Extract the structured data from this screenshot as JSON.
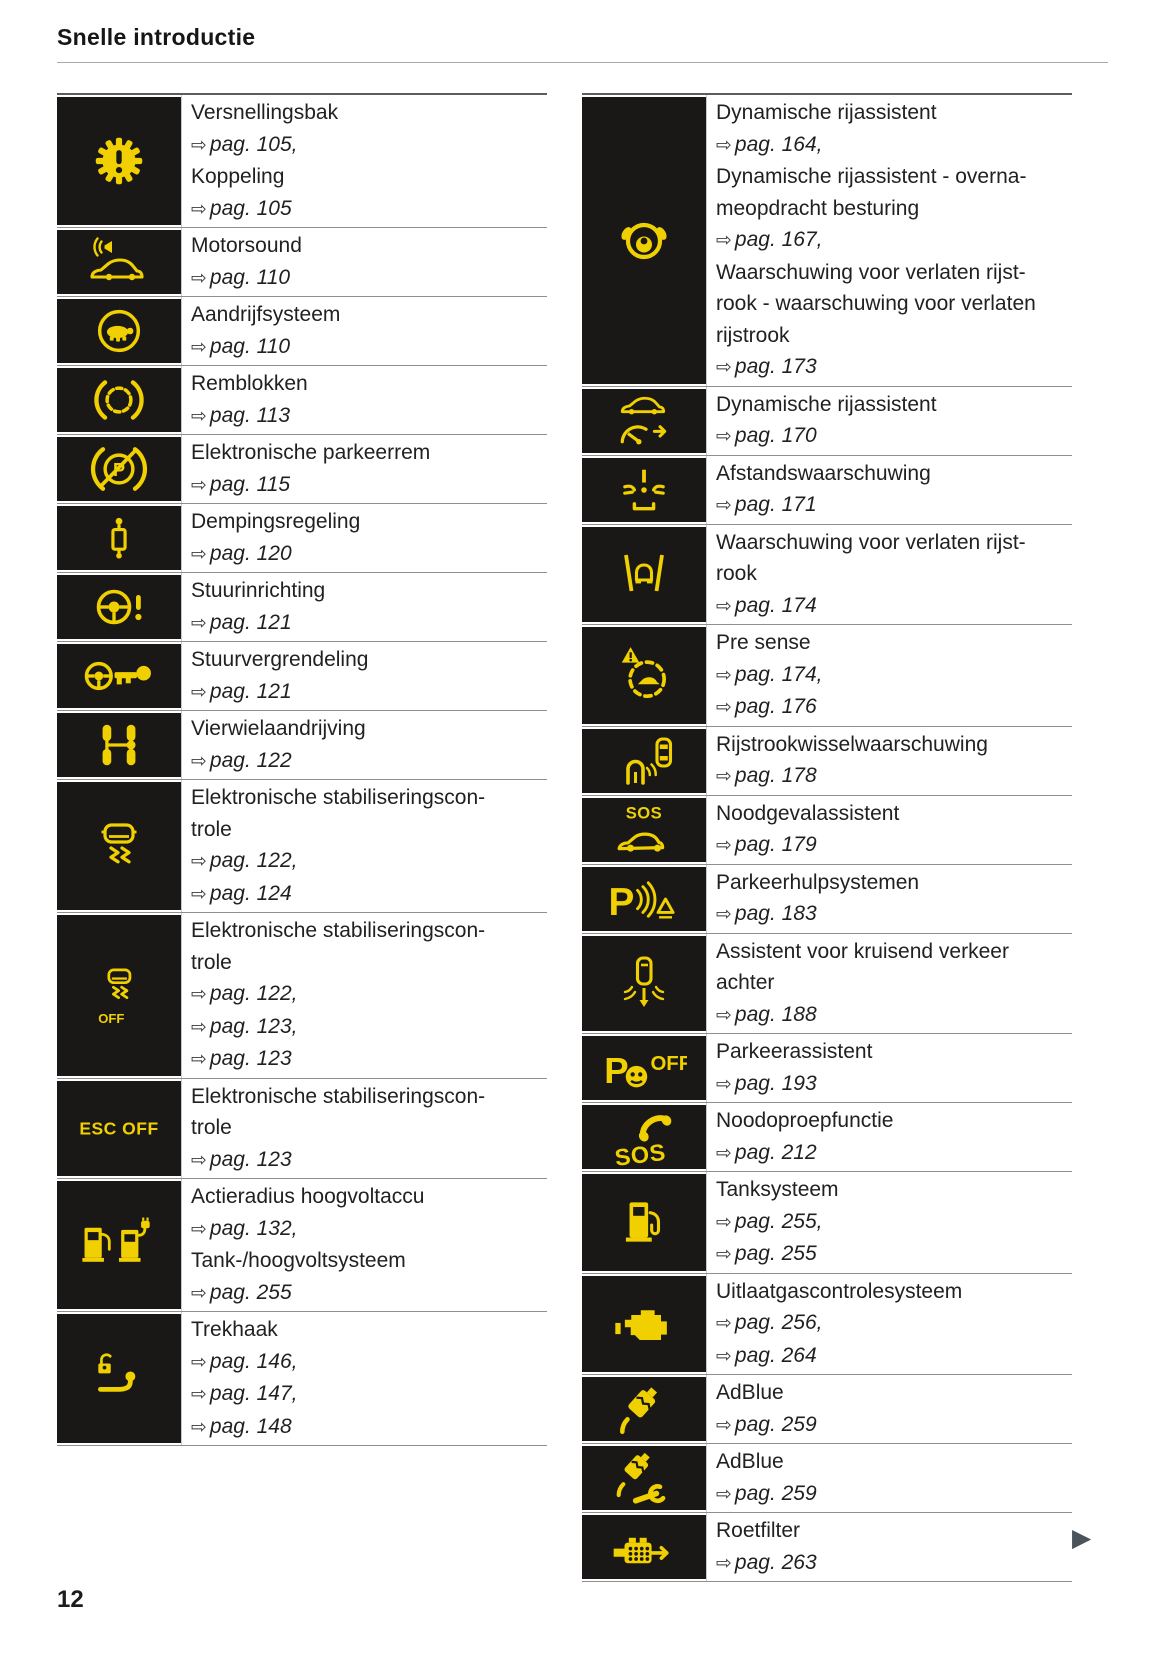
{
  "header": {
    "title": "Snelle introductie"
  },
  "footer": {
    "page_number": "12",
    "next_page_arrow": "▶"
  },
  "ref_arrow_glyph": "⇨",
  "colors": {
    "accent_yellow": "#f0d000",
    "tile_black": "#191816",
    "text": "#212121",
    "separator_line": "#8f8f8f",
    "next_arrow_color": "#4b545a"
  },
  "tables": {
    "left": {
      "rows": [
        {
          "icon": "gearbox-warning",
          "icon_texts": [],
          "lines": [
            [
              "label",
              "Versnellingsbak"
            ],
            [
              "ref",
              "pag. 105,"
            ],
            [
              "label",
              "Koppeling"
            ],
            [
              "ref",
              "pag. 105"
            ]
          ]
        },
        {
          "icon": "motorsound",
          "icon_texts": [],
          "lines": [
            [
              "label",
              "Motorsound"
            ],
            [
              "ref",
              "pag. 110"
            ]
          ]
        },
        {
          "icon": "drive-system-turtle",
          "icon_texts": [],
          "lines": [
            [
              "label",
              "Aandrijfsysteem"
            ],
            [
              "ref",
              "pag. 110"
            ]
          ]
        },
        {
          "icon": "brake-pads",
          "icon_texts": [],
          "lines": [
            [
              "label",
              "Remblokken"
            ],
            [
              "ref",
              "pag. 113"
            ]
          ]
        },
        {
          "icon": "electronic-parking-brake",
          "icon_texts": [
            "P"
          ],
          "lines": [
            [
              "label",
              "Elektronische parkeerrem"
            ],
            [
              "ref",
              "pag. 115"
            ]
          ]
        },
        {
          "icon": "damping-control",
          "icon_texts": [],
          "lines": [
            [
              "label",
              "Dempingsregeling"
            ],
            [
              "ref",
              "pag. 120"
            ]
          ]
        },
        {
          "icon": "steering-warning",
          "icon_texts": [],
          "lines": [
            [
              "label",
              "Stuurinrichting"
            ],
            [
              "ref",
              "pag. 121"
            ]
          ]
        },
        {
          "icon": "steering-lock",
          "icon_texts": [],
          "lines": [
            [
              "label",
              "Stuurvergrendeling"
            ],
            [
              "ref",
              "pag. 121"
            ]
          ]
        },
        {
          "icon": "all-wheel-drive",
          "icon_texts": [],
          "lines": [
            [
              "label",
              "Vierwielaandrijving"
            ],
            [
              "ref",
              "pag. 122"
            ]
          ]
        },
        {
          "icon": "esc",
          "icon_texts": [],
          "lines": [
            [
              "label",
              "Elektronische stabiliseringscon-"
            ],
            [
              "label",
              "trole"
            ],
            [
              "ref",
              "pag. 122,"
            ],
            [
              "ref",
              "pag. 124"
            ]
          ]
        },
        {
          "icon": "esc-off",
          "icon_texts": [
            "OFF"
          ],
          "lines": [
            [
              "label",
              "Elektronische stabiliseringscon-"
            ],
            [
              "label",
              "trole"
            ],
            [
              "ref",
              "pag. 122,"
            ],
            [
              "ref",
              "pag. 123,"
            ],
            [
              "ref",
              "pag. 123"
            ]
          ]
        },
        {
          "icon": "esc-off-label",
          "icon_texts": [
            "ESC OFF"
          ],
          "lines": [
            [
              "label",
              "Elektronische stabiliseringscon-"
            ],
            [
              "label",
              "trole"
            ],
            [
              "ref",
              "pag. 123"
            ]
          ]
        },
        {
          "icon": "high-voltage-system",
          "icon_texts": [],
          "lines": [
            [
              "label",
              "Actieradius hoogvoltaccu"
            ],
            [
              "ref",
              "pag. 132,"
            ],
            [
              "label",
              "Tank-/hoogvoltsysteem"
            ],
            [
              "ref",
              "pag. 255"
            ]
          ]
        },
        {
          "icon": "tow-hitch",
          "icon_texts": [],
          "lines": [
            [
              "label",
              "Trekhaak"
            ],
            [
              "ref",
              "pag. 146,"
            ],
            [
              "ref",
              "pag. 147,"
            ],
            [
              "ref",
              "pag. 148"
            ]
          ]
        }
      ]
    },
    "right": {
      "rows": [
        {
          "icon": "driver-assist-hands",
          "icon_texts": [],
          "lines": [
            [
              "label",
              "Dynamische rijassistent"
            ],
            [
              "ref",
              "pag. 164,"
            ],
            [
              "label",
              "Dynamische rijassistent - overna-"
            ],
            [
              "label",
              "meopdracht besturing"
            ],
            [
              "ref",
              "pag. 167,"
            ],
            [
              "label",
              "Waarschuwing voor verlaten rijst-"
            ],
            [
              "label",
              "rook - waarschuwing voor verlaten"
            ],
            [
              "label",
              "rijstrook"
            ],
            [
              "ref",
              "pag. 173"
            ]
          ]
        },
        {
          "icon": "dynamic-assist",
          "icon_texts": [],
          "lines": [
            [
              "label",
              "Dynamische rijassistent"
            ],
            [
              "ref",
              "pag. 170"
            ]
          ]
        },
        {
          "icon": "distance-warning",
          "icon_texts": [],
          "lines": [
            [
              "label",
              "Afstandswaarschuwing"
            ],
            [
              "ref",
              "pag. 171"
            ]
          ]
        },
        {
          "icon": "lane-departure",
          "icon_texts": [],
          "lines": [
            [
              "label",
              "Waarschuwing voor verlaten rijst-"
            ],
            [
              "label",
              "rook"
            ],
            [
              "ref",
              "pag. 174"
            ]
          ]
        },
        {
          "icon": "pre-sense",
          "icon_texts": [],
          "lines": [
            [
              "label",
              "Pre sense"
            ],
            [
              "ref",
              "pag. 174,"
            ],
            [
              "ref",
              "pag. 176"
            ]
          ]
        },
        {
          "icon": "lane-change-warning",
          "icon_texts": [],
          "lines": [
            [
              "label",
              "Rijstrookwisselwaarschuwing"
            ],
            [
              "ref",
              "pag. 178"
            ]
          ]
        },
        {
          "icon": "emergency-assist",
          "icon_texts": [
            "SOS"
          ],
          "lines": [
            [
              "label",
              "Noodgevalassistent"
            ],
            [
              "ref",
              "pag. 179"
            ]
          ]
        },
        {
          "icon": "parking-aid",
          "icon_texts": [
            "P"
          ],
          "lines": [
            [
              "label",
              "Parkeerhulpsystemen"
            ],
            [
              "ref",
              "pag. 183"
            ]
          ]
        },
        {
          "icon": "rear-cross-traffic",
          "icon_texts": [],
          "lines": [
            [
              "label",
              "Assistent voor kruisend verkeer"
            ],
            [
              "label",
              "achter"
            ],
            [
              "ref",
              "pag. 188"
            ]
          ]
        },
        {
          "icon": "park-assist-off",
          "icon_texts": [
            "P",
            "OFF"
          ],
          "lines": [
            [
              "label",
              "Parkeerassistent"
            ],
            [
              "ref",
              "pag. 193"
            ]
          ]
        },
        {
          "icon": "emergency-call",
          "icon_texts": [
            "SOS"
          ],
          "lines": [
            [
              "label",
              "Noodoproepfunctie"
            ],
            [
              "ref",
              "pag. 212"
            ]
          ]
        },
        {
          "icon": "fuel-system",
          "icon_texts": [],
          "lines": [
            [
              "label",
              "Tanksysteem"
            ],
            [
              "ref",
              "pag. 255,"
            ],
            [
              "ref",
              "pag. 255"
            ]
          ]
        },
        {
          "icon": "exhaust-control",
          "icon_texts": [],
          "lines": [
            [
              "label",
              "Uitlaatgascontrolesysteem"
            ],
            [
              "ref",
              "pag. 256,"
            ],
            [
              "ref",
              "pag. 264"
            ]
          ]
        },
        {
          "icon": "adblue",
          "icon_texts": [],
          "lines": [
            [
              "label",
              "AdBlue"
            ],
            [
              "ref",
              "pag. 259"
            ]
          ]
        },
        {
          "icon": "adblue-service",
          "icon_texts": [],
          "lines": [
            [
              "label",
              "AdBlue"
            ],
            [
              "ref",
              "pag. 259"
            ]
          ]
        },
        {
          "icon": "particulate-filter",
          "icon_texts": [],
          "lines": [
            [
              "label",
              "Roetfilter"
            ],
            [
              "ref",
              "pag. 263"
            ]
          ]
        }
      ]
    }
  }
}
